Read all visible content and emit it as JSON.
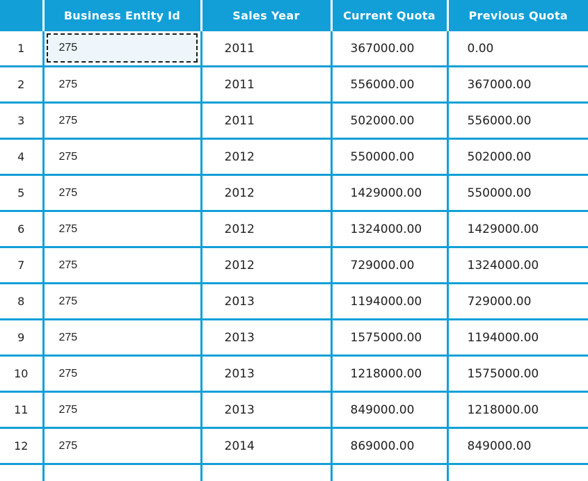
{
  "colors": {
    "accent": "#129fd7",
    "header_text": "#ffffff",
    "body_text": "#1f1f1f",
    "selected_bg": "#eef6fb",
    "selection_border": "#1a1a1a"
  },
  "table": {
    "headers": {
      "row_number": "",
      "business_entity_id": "Business Entity Id",
      "sales_year": "Sales Year",
      "current_quota": "Current Quota",
      "previous_quota": "Previous Quota"
    },
    "selection": {
      "row_number": "1",
      "column": "Business Entity Id",
      "value": "275"
    },
    "rows": [
      {
        "num": "1",
        "entity": "275",
        "year": "2011",
        "current": "367000.00",
        "previous": "0.00"
      },
      {
        "num": "2",
        "entity": "275",
        "year": "2011",
        "current": "556000.00",
        "previous": "367000.00"
      },
      {
        "num": "3",
        "entity": "275",
        "year": "2011",
        "current": "502000.00",
        "previous": "556000.00"
      },
      {
        "num": "4",
        "entity": "275",
        "year": "2012",
        "current": "550000.00",
        "previous": "502000.00"
      },
      {
        "num": "5",
        "entity": "275",
        "year": "2012",
        "current": "1429000.00",
        "previous": "550000.00"
      },
      {
        "num": "6",
        "entity": "275",
        "year": "2012",
        "current": "1324000.00",
        "previous": "1429000.00"
      },
      {
        "num": "7",
        "entity": "275",
        "year": "2012",
        "current": "729000.00",
        "previous": "1324000.00"
      },
      {
        "num": "8",
        "entity": "275",
        "year": "2013",
        "current": "1194000.00",
        "previous": "729000.00"
      },
      {
        "num": "9",
        "entity": "275",
        "year": "2013",
        "current": "1575000.00",
        "previous": "1194000.00"
      },
      {
        "num": "10",
        "entity": "275",
        "year": "2013",
        "current": "1218000.00",
        "previous": "1575000.00"
      },
      {
        "num": "11",
        "entity": "275",
        "year": "2013",
        "current": "849000.00",
        "previous": "1218000.00"
      },
      {
        "num": "12",
        "entity": "275",
        "year": "2014",
        "current": "869000.00",
        "previous": "849000.00"
      }
    ]
  }
}
